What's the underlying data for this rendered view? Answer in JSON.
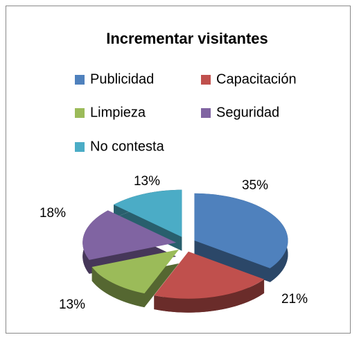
{
  "chart_data": {
    "type": "pie3d",
    "title": "Incrementar visitantes",
    "categories": [
      "Publicidad",
      "Capacitación",
      "Limpieza",
      "Seguridad",
      "No contesta"
    ],
    "values": [
      35,
      21,
      13,
      18,
      13
    ],
    "value_labels": [
      "35%",
      "21%",
      "13%",
      "18%",
      "13%"
    ],
    "colors": [
      "#4f81bd",
      "#c0504d",
      "#9bbb59",
      "#8064a2",
      "#4bacc6"
    ],
    "legend": "top"
  }
}
